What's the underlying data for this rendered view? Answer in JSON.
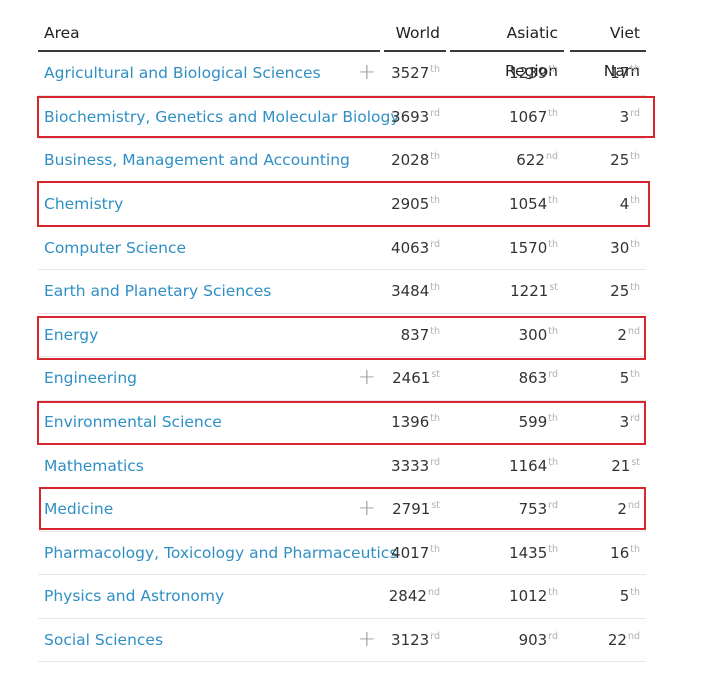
{
  "header": {
    "area": "Area",
    "world": "World",
    "asia": "Asiatic Region",
    "vn": "Viet Nam"
  },
  "rows": [
    {
      "area": "Agricultural and Biological Sciences",
      "plus": "+",
      "world": "3527",
      "world_sfx": "th",
      "asia": "1239",
      "asia_sfx": "th",
      "vn": "17",
      "vn_sfx": "th"
    },
    {
      "area": "Biochemistry, Genetics and Molecular Biology",
      "plus": "",
      "world": "3693",
      "world_sfx": "rd",
      "asia": "1067",
      "asia_sfx": "th",
      "vn": "3",
      "vn_sfx": "rd"
    },
    {
      "area": "Business, Management and Accounting",
      "plus": "",
      "world": "2028",
      "world_sfx": "th",
      "asia": "622",
      "asia_sfx": "nd",
      "vn": "25",
      "vn_sfx": "th"
    },
    {
      "area": "Chemistry",
      "plus": "",
      "world": "2905",
      "world_sfx": "th",
      "asia": "1054",
      "asia_sfx": "th",
      "vn": "4",
      "vn_sfx": "th"
    },
    {
      "area": "Computer Science",
      "plus": "",
      "world": "4063",
      "world_sfx": "rd",
      "asia": "1570",
      "asia_sfx": "th",
      "vn": "30",
      "vn_sfx": "th"
    },
    {
      "area": "Earth and Planetary Sciences",
      "plus": "",
      "world": "3484",
      "world_sfx": "th",
      "asia": "1221",
      "asia_sfx": "st",
      "vn": "25",
      "vn_sfx": "th"
    },
    {
      "area": "Energy",
      "plus": "",
      "world": "837",
      "world_sfx": "th",
      "asia": "300",
      "asia_sfx": "th",
      "vn": "2",
      "vn_sfx": "nd"
    },
    {
      "area": "Engineering",
      "plus": "+",
      "world": "2461",
      "world_sfx": "st",
      "asia": "863",
      "asia_sfx": "rd",
      "vn": "5",
      "vn_sfx": "th"
    },
    {
      "area": "Environmental Science",
      "plus": "",
      "world": "1396",
      "world_sfx": "th",
      "asia": "599",
      "asia_sfx": "th",
      "vn": "3",
      "vn_sfx": "rd"
    },
    {
      "area": "Mathematics",
      "plus": "",
      "world": "3333",
      "world_sfx": "rd",
      "asia": "1164",
      "asia_sfx": "th",
      "vn": "21",
      "vn_sfx": "st"
    },
    {
      "area": "Medicine",
      "plus": "+",
      "world": "2791",
      "world_sfx": "st",
      "asia": "753",
      "asia_sfx": "rd",
      "vn": "2",
      "vn_sfx": "nd"
    },
    {
      "area": "Pharmacology, Toxicology and Pharmaceutics",
      "plus": "",
      "world": "4017",
      "world_sfx": "th",
      "asia": "1435",
      "asia_sfx": "th",
      "vn": "16",
      "vn_sfx": "th"
    },
    {
      "area": "Physics and Astronomy",
      "plus": "",
      "world": "2842",
      "world_sfx": "nd",
      "asia": "1012",
      "asia_sfx": "th",
      "vn": "5",
      "vn_sfx": "th"
    },
    {
      "area": "Social Sciences",
      "plus": "+",
      "world": "3123",
      "world_sfx": "rd",
      "asia": "903",
      "asia_sfx": "rd",
      "vn": "22",
      "vn_sfx": "nd"
    }
  ],
  "highlight_color": "#d7262e",
  "link_color": "#2f8fc4"
}
